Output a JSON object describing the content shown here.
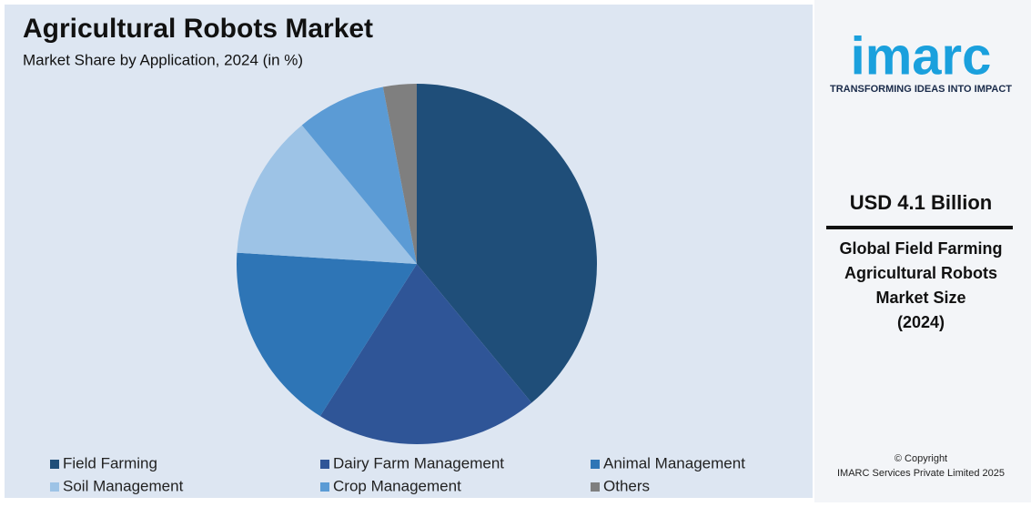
{
  "chart_data": {
    "type": "pie",
    "title": "Agricultural Robots Market",
    "subtitle": "Market Share by Application, 2024 (in %)",
    "categories": [
      "Field Farming",
      "Dairy Farm Management",
      "Animal Management",
      "Soil Management",
      "Crop Management",
      "Others"
    ],
    "values": [
      39,
      20,
      17,
      13,
      8,
      3
    ],
    "colors": [
      "#1f4e79",
      "#2f5597",
      "#2e75b6",
      "#9dc3e6",
      "#5b9bd5",
      "#7f7f7f"
    ],
    "legend": "bottom"
  },
  "sidebar": {
    "logo": "imarc",
    "tagline": "TRANSFORMING IDEAS INTO IMPACT",
    "headline": "USD 4.1 Billion",
    "description_lines": [
      "Global Field Farming",
      "Agricultural Robots",
      "Market Size",
      "(2024)"
    ],
    "copyright": "© Copyright",
    "company": "IMARC Services Private Limited 2025"
  }
}
